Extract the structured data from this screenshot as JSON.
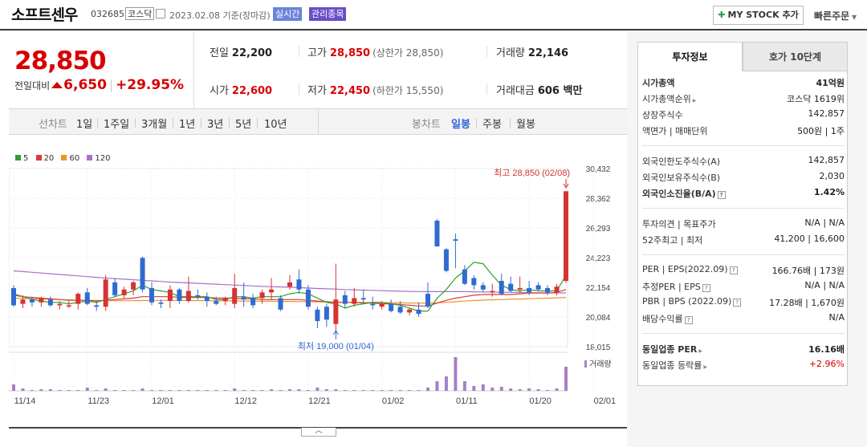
{
  "header": {
    "title": "소프트센우",
    "code": "032685",
    "market": "코스닥",
    "date": "2023.02.08 기준(장마감)",
    "realtime": "실시간",
    "managed": "관리종목",
    "mystock_label": "MY STOCK 추가",
    "quick_order": "빠른주문"
  },
  "price": {
    "current": "28,850",
    "change_label": "전일대비",
    "change": "6,650",
    "change_pct": "+29.95%"
  },
  "stats": {
    "prev_close_label": "전일",
    "prev_close": "22,200",
    "high_label": "고가",
    "high": "28,850",
    "upper_limit": "(상한가 28,850)",
    "volume_label": "거래량",
    "volume": "22,146",
    "open_label": "시가",
    "open": "22,600",
    "low_label": "저가",
    "low": "22,450",
    "lower_limit": "(하한가 15,550)",
    "amount_label": "거래대금",
    "amount": "606 백만"
  },
  "period_bar": {
    "line_label": "선차트",
    "line_options": [
      "1일",
      "1주일",
      "3개월",
      "1년",
      "3년",
      "5년",
      "10년"
    ],
    "candle_label": "봉차트",
    "candle_options": [
      "일봉",
      "주봉",
      "월봉"
    ],
    "candle_selected": "일봉"
  },
  "chart_data": {
    "type": "candlestick",
    "legend": [
      {
        "name": "5",
        "color": "#2e9e2e"
      },
      {
        "name": "20",
        "color": "#d93a3a"
      },
      {
        "name": "60",
        "color": "#f0912a"
      },
      {
        "name": "120",
        "color": "#a970c9"
      }
    ],
    "y_ticks": [
      "30,432",
      "28,362",
      "26,293",
      "24,223",
      "22,154",
      "20,084",
      "18,015"
    ],
    "ylim": [
      18015,
      30432
    ],
    "x_ticks": [
      "11/14",
      "11/23",
      "12/01",
      "12/12",
      "12/21",
      "01/02",
      "01/11",
      "01/20",
      "02/01"
    ],
    "high_annotation": "최고 28,850 (02/08)",
    "low_annotation": "최저 19,000 (01/04)",
    "volume_label": "거래량",
    "up_color": "#d63333",
    "down_color": "#2f6bd1",
    "candles": [
      {
        "o": 22100,
        "h": 22300,
        "l": 20800,
        "c": 20900
      },
      {
        "o": 21000,
        "h": 21600,
        "l": 20700,
        "c": 21300
      },
      {
        "o": 21300,
        "h": 21500,
        "l": 20800,
        "c": 21100
      },
      {
        "o": 21100,
        "h": 21500,
        "l": 20800,
        "c": 21400
      },
      {
        "o": 21300,
        "h": 21500,
        "l": 20800,
        "c": 20900
      },
      {
        "o": 20900,
        "h": 21200,
        "l": 20600,
        "c": 21000
      },
      {
        "o": 20900,
        "h": 21200,
        "l": 20700,
        "c": 20900
      },
      {
        "o": 21000,
        "h": 21800,
        "l": 20600,
        "c": 21700
      },
      {
        "o": 21800,
        "h": 22100,
        "l": 20900,
        "c": 21000
      },
      {
        "o": 20900,
        "h": 21200,
        "l": 20500,
        "c": 20800
      },
      {
        "o": 20800,
        "h": 23000,
        "l": 20500,
        "c": 22700
      },
      {
        "o": 22500,
        "h": 22800,
        "l": 21500,
        "c": 21600
      },
      {
        "o": 21600,
        "h": 22200,
        "l": 21400,
        "c": 22000
      },
      {
        "o": 22000,
        "h": 22600,
        "l": 21600,
        "c": 22500
      },
      {
        "o": 24200,
        "h": 24300,
        "l": 21800,
        "c": 22000
      },
      {
        "o": 22100,
        "h": 22500,
        "l": 20900,
        "c": 21100
      },
      {
        "o": 21100,
        "h": 21300,
        "l": 20700,
        "c": 21000
      },
      {
        "o": 21200,
        "h": 22300,
        "l": 20700,
        "c": 22000
      },
      {
        "o": 22000,
        "h": 22100,
        "l": 21000,
        "c": 21200
      },
      {
        "o": 21200,
        "h": 22900,
        "l": 21100,
        "c": 21900
      },
      {
        "o": 21600,
        "h": 22000,
        "l": 21300,
        "c": 21500
      },
      {
        "o": 21500,
        "h": 21800,
        "l": 20800,
        "c": 21200
      },
      {
        "o": 21200,
        "h": 21500,
        "l": 20900,
        "c": 21000
      },
      {
        "o": 21200,
        "h": 21500,
        "l": 20900,
        "c": 21400
      },
      {
        "o": 21000,
        "h": 23100,
        "l": 20700,
        "c": 22100
      },
      {
        "o": 21500,
        "h": 22500,
        "l": 20800,
        "c": 21300
      },
      {
        "o": 21400,
        "h": 21700,
        "l": 20700,
        "c": 20900
      },
      {
        "o": 21400,
        "h": 22000,
        "l": 21000,
        "c": 21800
      },
      {
        "o": 21800,
        "h": 22800,
        "l": 21300,
        "c": 22000
      },
      {
        "o": 21400,
        "h": 21600,
        "l": 20500,
        "c": 20600
      },
      {
        "o": 22200,
        "h": 23000,
        "l": 22000,
        "c": 22500
      },
      {
        "o": 22700,
        "h": 23400,
        "l": 21700,
        "c": 22000
      },
      {
        "o": 22000,
        "h": 22300,
        "l": 20600,
        "c": 20800
      },
      {
        "o": 20600,
        "h": 20800,
        "l": 19300,
        "c": 19800
      },
      {
        "o": 20800,
        "h": 21000,
        "l": 19400,
        "c": 19900
      },
      {
        "o": 19600,
        "h": 23800,
        "l": 19000,
        "c": 21300
      },
      {
        "o": 21600,
        "h": 21900,
        "l": 20700,
        "c": 21000
      },
      {
        "o": 21000,
        "h": 22100,
        "l": 20800,
        "c": 21400
      },
      {
        "o": 21400,
        "h": 22000,
        "l": 21100,
        "c": 21300
      },
      {
        "o": 21000,
        "h": 21500,
        "l": 20600,
        "c": 20900
      },
      {
        "o": 20800,
        "h": 21200,
        "l": 20600,
        "c": 21000
      },
      {
        "o": 21000,
        "h": 21300,
        "l": 20400,
        "c": 20500
      },
      {
        "o": 20800,
        "h": 21200,
        "l": 20300,
        "c": 20400
      },
      {
        "o": 20400,
        "h": 20700,
        "l": 20200,
        "c": 20600
      },
      {
        "o": 20600,
        "h": 21100,
        "l": 20100,
        "c": 20300
      },
      {
        "o": 21700,
        "h": 22500,
        "l": 20700,
        "c": 20800
      },
      {
        "o": 26800,
        "h": 26900,
        "l": 25000,
        "c": 25000
      },
      {
        "o": 24800,
        "h": 24900,
        "l": 23200,
        "c": 23300
      },
      {
        "o": 25500,
        "h": 25900,
        "l": 23500,
        "c": 25400
      },
      {
        "o": 23400,
        "h": 23700,
        "l": 22300,
        "c": 22400
      },
      {
        "o": 22800,
        "h": 23000,
        "l": 22000,
        "c": 22300
      },
      {
        "o": 22300,
        "h": 22500,
        "l": 21800,
        "c": 22000
      },
      {
        "o": 21900,
        "h": 22400,
        "l": 21500,
        "c": 21900
      },
      {
        "o": 22600,
        "h": 23100,
        "l": 21600,
        "c": 21700
      },
      {
        "o": 22400,
        "h": 22900,
        "l": 21800,
        "c": 21900
      },
      {
        "o": 22000,
        "h": 22900,
        "l": 21800,
        "c": 22100
      },
      {
        "o": 22100,
        "h": 22600,
        "l": 21600,
        "c": 21800
      },
      {
        "o": 22300,
        "h": 22500,
        "l": 21900,
        "c": 22000
      },
      {
        "o": 22100,
        "h": 22300,
        "l": 21600,
        "c": 21800
      },
      {
        "o": 21800,
        "h": 22400,
        "l": 21600,
        "c": 22200
      },
      {
        "o": 22600,
        "h": 28850,
        "l": 22450,
        "c": 28850
      }
    ],
    "ma5": [
      21700,
      21500,
      21300,
      21200,
      21100,
      21100,
      21000,
      21100,
      21200,
      21100,
      21300,
      21500,
      21700,
      21900,
      22300,
      22000,
      21900,
      21800,
      21500,
      21500,
      21500,
      21500,
      21300,
      21300,
      21500,
      21500,
      21400,
      21500,
      21500,
      21500,
      21700,
      21800,
      21700,
      21400,
      21100,
      21000,
      20700,
      20900,
      21000,
      21100,
      21100,
      21000,
      20900,
      20700,
      20500,
      20500,
      21400,
      22000,
      22800,
      23300,
      23900,
      23800,
      23000,
      22300,
      22000,
      21900,
      22000,
      21900,
      21900,
      21900,
      23000
    ],
    "ma20": [
      21600,
      21500,
      21450,
      21400,
      21350,
      21300,
      21250,
      21250,
      21250,
      21200,
      21250,
      21300,
      21350,
      21400,
      21500,
      21500,
      21500,
      21500,
      21450,
      21450,
      21450,
      21450,
      21400,
      21400,
      21400,
      21350,
      21350,
      21300,
      21300,
      21300,
      21300,
      21300,
      21250,
      21200,
      21150,
      21100,
      21100,
      21100,
      21050,
      21050,
      21000,
      21000,
      20950,
      20900,
      20850,
      20850,
      21050,
      21250,
      21400,
      21500,
      21600,
      21650,
      21650,
      21650,
      21650,
      21700,
      21750,
      21750,
      21750,
      21800,
      22000
    ],
    "ma60": [
      21400,
      21380,
      21360,
      21340,
      21320,
      21300,
      21280,
      21260,
      21250,
      21240,
      21230,
      21220,
      21220,
      21220,
      21230,
      21240,
      21240,
      21240,
      21240,
      21230,
      21230,
      21220,
      21220,
      21210,
      21210,
      21200,
      21190,
      21180,
      21180,
      21170,
      21170,
      21160,
      21150,
      21140,
      21130,
      21120,
      21110,
      21100,
      21100,
      21090,
      21090,
      21080,
      21070,
      21060,
      21050,
      21040,
      21070,
      21110,
      21150,
      21190,
      21230,
      21260,
      21280,
      21300,
      21320,
      21340,
      21360,
      21380,
      21400,
      21420,
      21450
    ],
    "ma120": [
      23300,
      23250,
      23200,
      23150,
      23100,
      23050,
      23000,
      22950,
      22900,
      22850,
      22800,
      22760,
      22720,
      22680,
      22640,
      22600,
      22560,
      22520,
      22490,
      22460,
      22430,
      22400,
      22370,
      22340,
      22310,
      22280,
      22250,
      22220,
      22200,
      22180,
      22160,
      22130,
      22100,
      22070,
      22050,
      22030,
      22000,
      21980,
      21960,
      21940,
      21920,
      21900,
      21880,
      21870,
      21860,
      21850,
      21850,
      21850,
      21850,
      21850,
      21840,
      21830,
      21820,
      21810,
      21800,
      21790,
      21780,
      21770,
      21760,
      21760,
      21760
    ],
    "volume": [
      8,
      3,
      1,
      2,
      2,
      1,
      1,
      1,
      4,
      1,
      3,
      1,
      1,
      1,
      3,
      1,
      1,
      1,
      1,
      1,
      1,
      1,
      1,
      1,
      3,
      1,
      1,
      1,
      2,
      1,
      2,
      2,
      1,
      4,
      2,
      2,
      1,
      1,
      1,
      1,
      1,
      1,
      1,
      1,
      1,
      4,
      12,
      18,
      42,
      12,
      6,
      8,
      4,
      5,
      3,
      2,
      3,
      2,
      1,
      3,
      30
    ]
  },
  "info_tabs": {
    "tab1": "투자정보",
    "tab2": "호가 10단계"
  },
  "info": {
    "rows": [
      {
        "k": "시가총액",
        "v": "41억원",
        "bold": true
      },
      {
        "k": "시가총액순위",
        "v": "코스닥 1619위",
        "tri": true
      },
      {
        "k": "상장주식수",
        "v": "142,857"
      },
      {
        "k": "액면가 | 매매단위",
        "v": "500원 | 1주"
      },
      {
        "k": "외국인한도주식수(A)",
        "v": "142,857"
      },
      {
        "k": "외국인보유주식수(B)",
        "v": "2,030"
      },
      {
        "k": "외국인소진율(B/A)",
        "v": "1.42%",
        "bold": true,
        "qm": true
      },
      {
        "k": "투자의견 | 목표주가",
        "v": "N/A | N/A"
      },
      {
        "k": "52주최고 | 최저",
        "v": "41,200 | 16,600"
      },
      {
        "k": "PER | EPS(2022.09)",
        "v": "166.76배 | 173원",
        "qm": true
      },
      {
        "k": "추정PER | EPS",
        "v": "N/A | N/A",
        "qm": true
      },
      {
        "k": "PBR | BPS (2022.09)",
        "v": "17.28배 | 1,670원",
        "qm": true
      },
      {
        "k": "배당수익률",
        "v": "N/A",
        "qm": true
      },
      {
        "k": "동일업종 PER",
        "v": "16.16배",
        "bold": true,
        "tri": true
      },
      {
        "k": "동일업종 등락률",
        "v": "+2.96%",
        "tri": true,
        "red": true
      }
    ]
  }
}
